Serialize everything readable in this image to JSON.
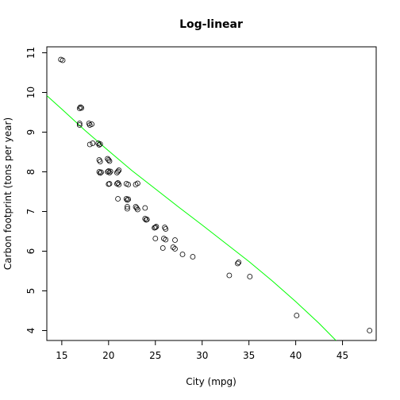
{
  "chart_data": {
    "type": "scatter",
    "title": "Log-linear",
    "xlabel": "City (mpg)",
    "ylabel": "Carbon footprint (tons per year)",
    "xlim": [
      13.4,
      48.6
    ],
    "ylim": [
      3.75,
      11.15
    ],
    "xticks": [
      15,
      20,
      25,
      30,
      35,
      40,
      45
    ],
    "yticks": [
      4,
      5,
      6,
      7,
      8,
      9,
      10,
      11
    ],
    "grid": false,
    "colors": {
      "fit": "#00ff00",
      "points": "#000000"
    },
    "points": [
      {
        "x": 14.9,
        "y": 10.83
      },
      {
        "x": 15.1,
        "y": 10.81
      },
      {
        "x": 16.9,
        "y": 9.6
      },
      {
        "x": 17.0,
        "y": 9.63
      },
      {
        "x": 17.1,
        "y": 9.61
      },
      {
        "x": 16.9,
        "y": 9.22
      },
      {
        "x": 16.9,
        "y": 9.18
      },
      {
        "x": 17.9,
        "y": 9.22
      },
      {
        "x": 18.0,
        "y": 9.18
      },
      {
        "x": 18.2,
        "y": 9.2
      },
      {
        "x": 18.0,
        "y": 8.69
      },
      {
        "x": 18.3,
        "y": 8.72
      },
      {
        "x": 18.9,
        "y": 8.72
      },
      {
        "x": 19.0,
        "y": 8.68
      },
      {
        "x": 19.1,
        "y": 8.7
      },
      {
        "x": 19.0,
        "y": 8.3
      },
      {
        "x": 19.1,
        "y": 8.26
      },
      {
        "x": 19.0,
        "y": 8.0
      },
      {
        "x": 19.1,
        "y": 7.97
      },
      {
        "x": 19.2,
        "y": 7.99
      },
      {
        "x": 19.9,
        "y": 8.33
      },
      {
        "x": 20.0,
        "y": 8.3
      },
      {
        "x": 20.1,
        "y": 8.27
      },
      {
        "x": 19.9,
        "y": 8.0
      },
      {
        "x": 20.0,
        "y": 8.02
      },
      {
        "x": 20.1,
        "y": 7.98
      },
      {
        "x": 20.2,
        "y": 8.01
      },
      {
        "x": 20.0,
        "y": 7.69
      },
      {
        "x": 20.1,
        "y": 7.7
      },
      {
        "x": 20.9,
        "y": 7.98
      },
      {
        "x": 21.0,
        "y": 8.01
      },
      {
        "x": 21.1,
        "y": 8.04
      },
      {
        "x": 20.9,
        "y": 7.7
      },
      {
        "x": 21.0,
        "y": 7.72
      },
      {
        "x": 21.1,
        "y": 7.68
      },
      {
        "x": 21.0,
        "y": 7.32
      },
      {
        "x": 21.9,
        "y": 7.7
      },
      {
        "x": 22.1,
        "y": 7.68
      },
      {
        "x": 21.9,
        "y": 7.32
      },
      {
        "x": 22.0,
        "y": 7.29
      },
      {
        "x": 22.1,
        "y": 7.31
      },
      {
        "x": 22.0,
        "y": 7.12
      },
      {
        "x": 22.0,
        "y": 7.07
      },
      {
        "x": 22.9,
        "y": 7.68
      },
      {
        "x": 23.1,
        "y": 7.71
      },
      {
        "x": 22.9,
        "y": 7.12
      },
      {
        "x": 23.0,
        "y": 7.09
      },
      {
        "x": 23.1,
        "y": 7.05
      },
      {
        "x": 23.9,
        "y": 7.09
      },
      {
        "x": 23.9,
        "y": 6.82
      },
      {
        "x": 24.0,
        "y": 6.79
      },
      {
        "x": 24.1,
        "y": 6.8
      },
      {
        "x": 24.9,
        "y": 6.59
      },
      {
        "x": 25.0,
        "y": 6.6
      },
      {
        "x": 25.1,
        "y": 6.62
      },
      {
        "x": 25.0,
        "y": 6.32
      },
      {
        "x": 25.9,
        "y": 6.32
      },
      {
        "x": 26.1,
        "y": 6.29
      },
      {
        "x": 26.0,
        "y": 6.6
      },
      {
        "x": 26.1,
        "y": 6.56
      },
      {
        "x": 25.8,
        "y": 6.08
      },
      {
        "x": 26.9,
        "y": 6.1
      },
      {
        "x": 27.1,
        "y": 6.06
      },
      {
        "x": 27.1,
        "y": 6.28
      },
      {
        "x": 27.9,
        "y": 5.92
      },
      {
        "x": 29.0,
        "y": 5.86
      },
      {
        "x": 32.9,
        "y": 5.39
      },
      {
        "x": 33.8,
        "y": 5.69
      },
      {
        "x": 33.9,
        "y": 5.72
      },
      {
        "x": 35.1,
        "y": 5.36
      },
      {
        "x": 40.1,
        "y": 4.38
      },
      {
        "x": 47.9,
        "y": 4.0
      }
    ],
    "fit_curve": [
      {
        "x": 13.4,
        "y": 9.92
      },
      {
        "x": 15,
        "y": 9.58
      },
      {
        "x": 17.5,
        "y": 9.04
      },
      {
        "x": 20,
        "y": 8.53
      },
      {
        "x": 22.5,
        "y": 8.03
      },
      {
        "x": 25,
        "y": 7.57
      },
      {
        "x": 27.5,
        "y": 7.11
      },
      {
        "x": 30,
        "y": 6.66
      },
      {
        "x": 32.5,
        "y": 6.2
      },
      {
        "x": 35,
        "y": 5.74
      },
      {
        "x": 37.5,
        "y": 5.25
      },
      {
        "x": 40,
        "y": 4.73
      },
      {
        "x": 42.5,
        "y": 4.18
      },
      {
        "x": 44.3,
        "y": 3.75
      }
    ]
  }
}
